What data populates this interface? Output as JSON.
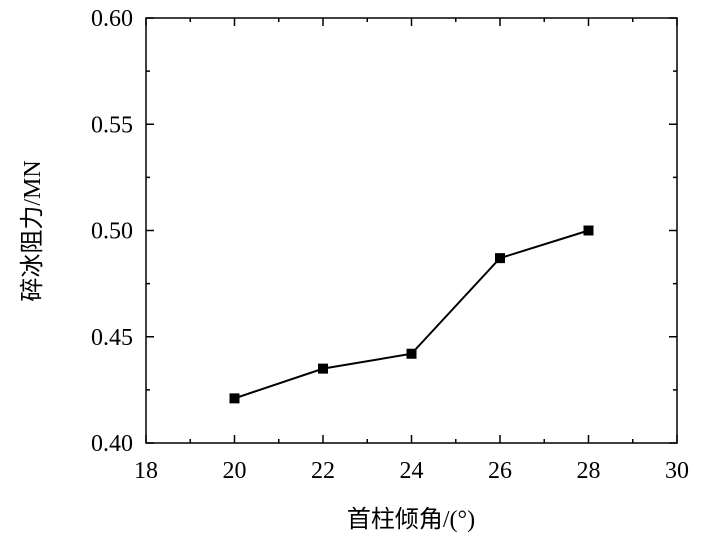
{
  "chart_data": {
    "type": "line",
    "title": "",
    "xlabel": "首柱倾角/(°)",
    "ylabel": "碎冰阻力/MN",
    "xlim": [
      18,
      30
    ],
    "ylim": [
      0.4,
      0.6
    ],
    "x_major_ticks": [
      18,
      20,
      22,
      24,
      26,
      28,
      30
    ],
    "x_tick_labels": [
      "18",
      "20",
      "22",
      "24",
      "26",
      "28",
      "30"
    ],
    "y_major_ticks": [
      0.4,
      0.45,
      0.5,
      0.55,
      0.6
    ],
    "y_tick_labels": [
      "0.40",
      "0.45",
      "0.50",
      "0.55",
      "0.60"
    ],
    "grid": false,
    "legend": "none",
    "series": [
      {
        "x": [
          20,
          22,
          24,
          26,
          28
        ],
        "values": [
          0.421,
          0.435,
          0.442,
          0.487,
          0.5
        ],
        "color": "#000000",
        "marker": "square"
      }
    ]
  }
}
